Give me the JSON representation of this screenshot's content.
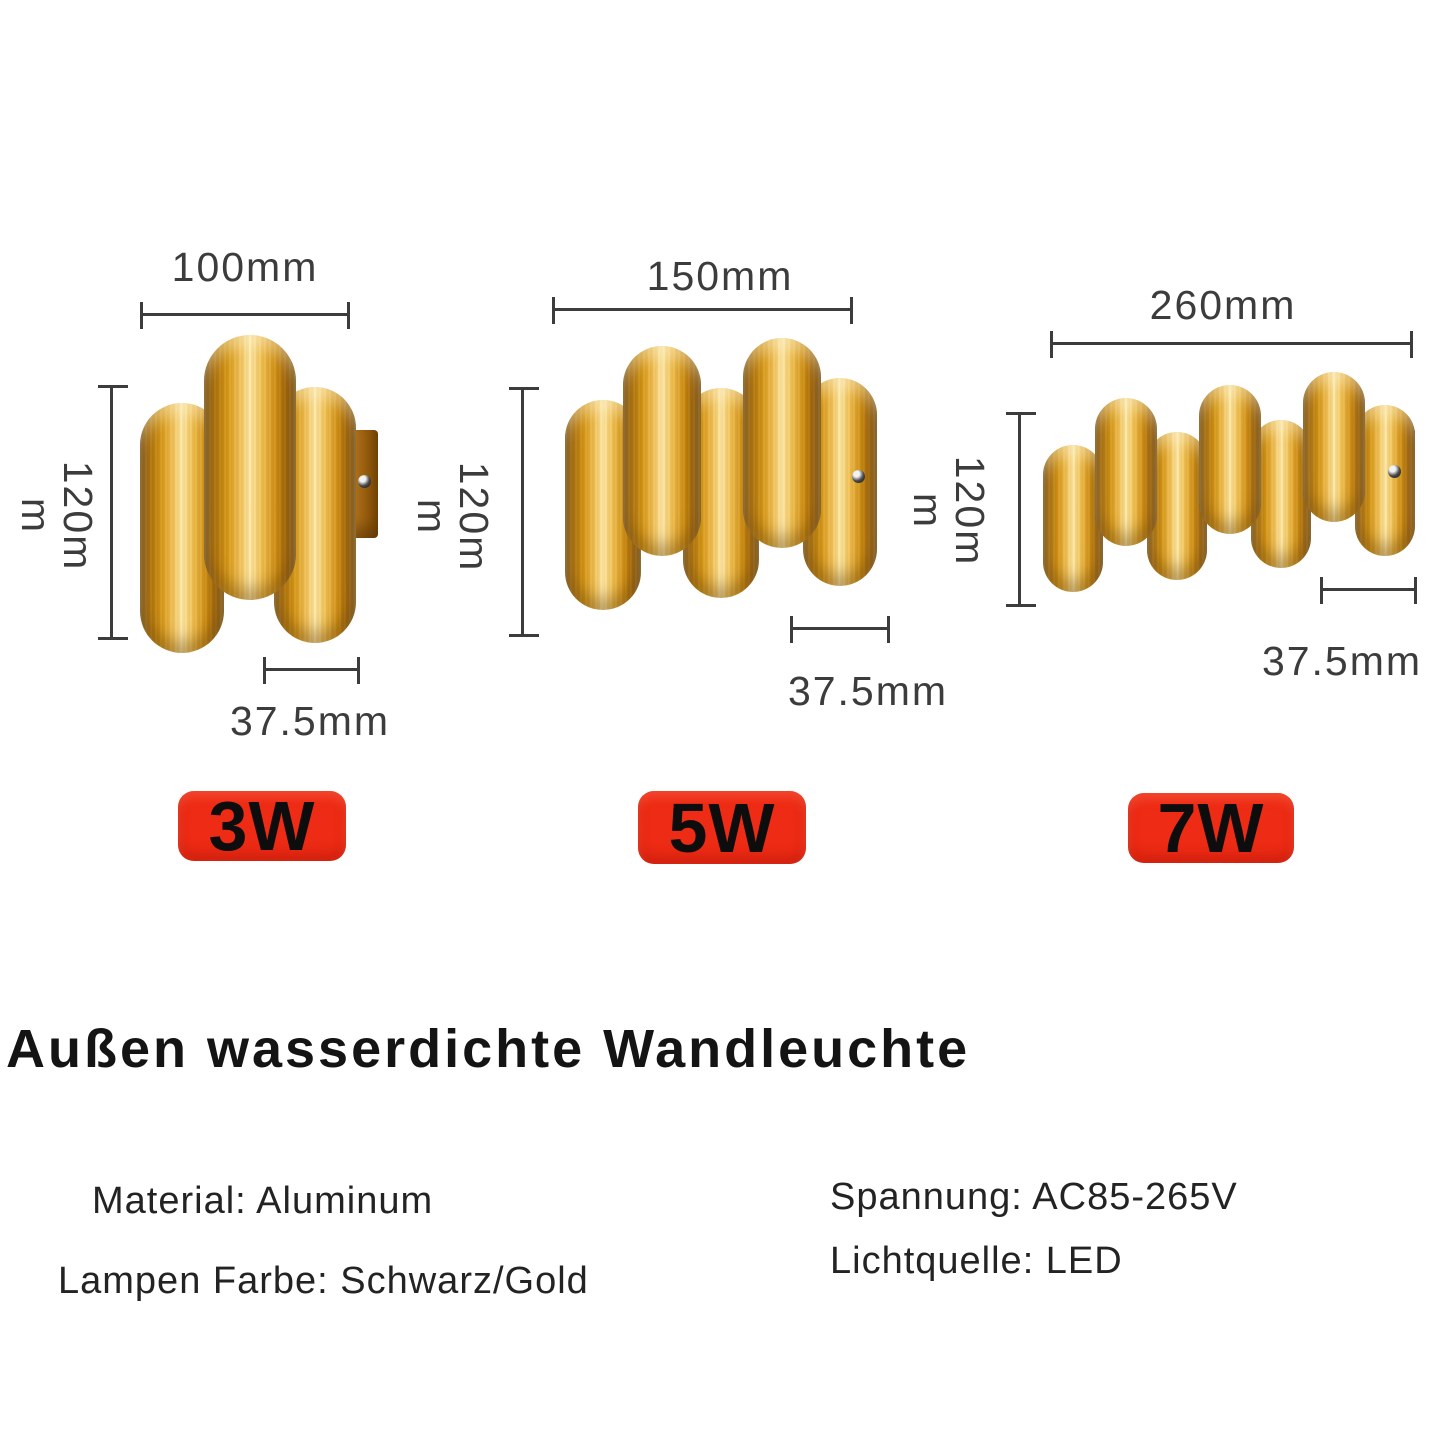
{
  "colors": {
    "background": "#ffffff",
    "badge_red": "#ee2b14",
    "badge_text": "#0d0d0d",
    "dimension_gray": "#3c3c3c",
    "heading_black": "#141414",
    "spec_black": "#232323",
    "gold_highlight": "#ffe9a6",
    "gold_mid": "#d89a18",
    "gold_dark": "#6f4503"
  },
  "products": [
    {
      "power_label": "3W",
      "width_label": "100mm",
      "height_label_line1": "120m",
      "height_label_line2": "m",
      "depth_label": "37.5mm"
    },
    {
      "power_label": "5W",
      "width_label": "150mm",
      "height_label_line1": "120m",
      "height_label_line2": "m",
      "depth_label": "37.5mm"
    },
    {
      "power_label": "7W",
      "width_label": "260mm",
      "height_label_line1": "120m",
      "height_label_line2": "m",
      "depth_label": "37.5mm"
    }
  ],
  "title": "Außen wasserdichte Wandleuchte",
  "specs": {
    "material": "Material: Aluminum",
    "lamp_color": "Lampen Farbe: Schwarz/Gold",
    "voltage": "Spannung: AC85-265V",
    "light_source": "Lichtquelle: LED"
  }
}
